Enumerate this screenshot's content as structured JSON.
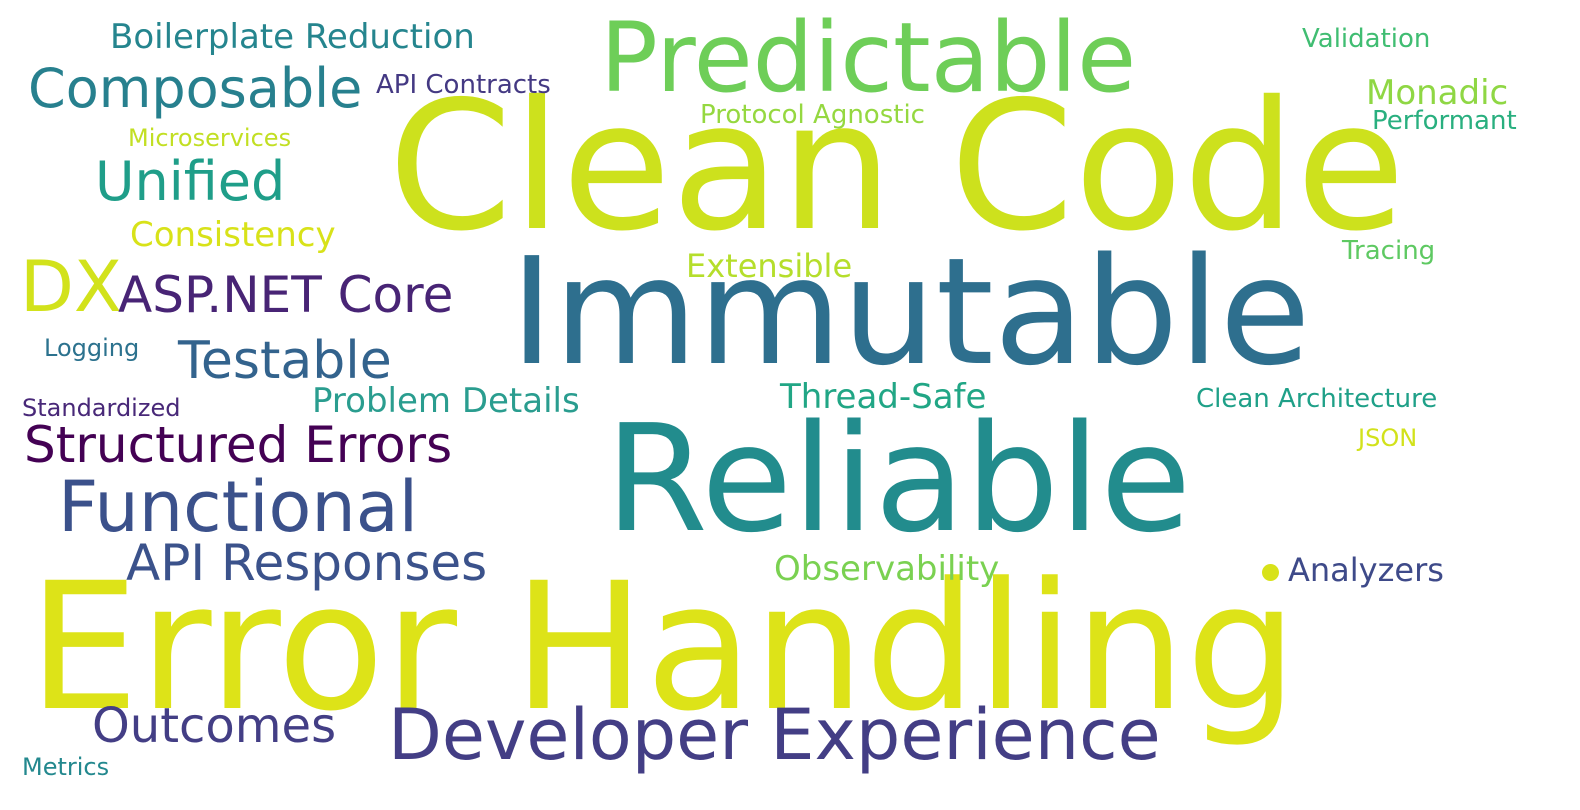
{
  "words": [
    {
      "text": "Error Handling",
      "color": "#dde318"
    },
    {
      "text": "Clean Code",
      "color": "#cde11d"
    },
    {
      "text": "Immutable",
      "color": "#2e6f8e"
    },
    {
      "text": "Reliable",
      "color": "#228c8d"
    },
    {
      "text": "Predictable",
      "color": "#6ece58"
    },
    {
      "text": "Developer Experience",
      "color": "#433e85"
    },
    {
      "text": "Functional",
      "color": "#3b518b"
    },
    {
      "text": "Composable",
      "color": "#27808e"
    },
    {
      "text": "Structured Errors",
      "color": "#440154"
    },
    {
      "text": "API Responses",
      "color": "#3b528b"
    },
    {
      "text": "Unified",
      "color": "#1f9e89"
    },
    {
      "text": "Testable",
      "color": "#33638d"
    },
    {
      "text": "DX",
      "color": "#d2e21b"
    },
    {
      "text": "ASP.NET Core",
      "color": "#482475"
    },
    {
      "text": "Outcomes",
      "color": "#433e85"
    },
    {
      "text": "Boilerplate Reduction",
      "color": "#25858e"
    },
    {
      "text": "Problem Details",
      "color": "#2a9d8f"
    },
    {
      "text": "Observability",
      "color": "#7ad151"
    },
    {
      "text": "Thread-Safe",
      "color": "#21a685"
    },
    {
      "text": "Consistency",
      "color": "#d8e219"
    },
    {
      "text": "Extensible",
      "color": "#b5de2b"
    },
    {
      "text": "Analyzers",
      "color": "#3e4a89"
    },
    {
      "text": "Monadic",
      "color": "#8fd744"
    },
    {
      "text": "API Contracts",
      "color": "#443983"
    },
    {
      "text": "Protocol Agnostic",
      "color": "#95d840"
    },
    {
      "text": "Microservices",
      "color": "#c2df23"
    },
    {
      "text": "Performant",
      "color": "#29af7f"
    },
    {
      "text": "Validation",
      "color": "#40bd72"
    },
    {
      "text": "Tracing",
      "color": "#5ec962"
    },
    {
      "text": "Clean Architecture",
      "color": "#1fa088"
    },
    {
      "text": "JSON",
      "color": "#d2e21b"
    },
    {
      "text": "Logging",
      "color": "#2c728e"
    },
    {
      "text": "Standardized",
      "color": "#482878"
    },
    {
      "text": "Metrics",
      "color": "#23888e"
    }
  ],
  "dot": {
    "color": "#d8e219"
  }
}
